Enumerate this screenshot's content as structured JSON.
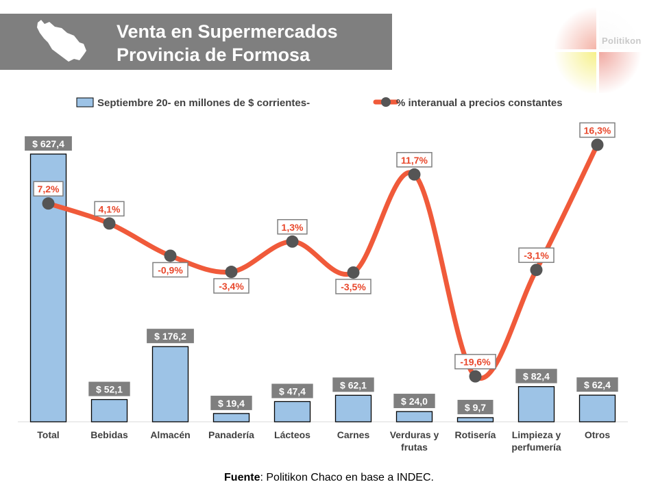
{
  "header": {
    "title_line1": "Venta en Supermercados",
    "title_line2": "Provincia de Formosa"
  },
  "logo": {
    "text": "Politikon"
  },
  "legend": {
    "bar_label": "Septiembre 20- en millones de $ corrientes-",
    "line_label": "% interanual a precios constantes"
  },
  "source": {
    "label": "Fuente",
    "text": ": Politikon Chaco en base a INDEC."
  },
  "colors": {
    "bar_fill": "#9dc3e6",
    "bar_stroke": "#000000",
    "line": "#f05a3a",
    "marker": "#555555",
    "value_label_bg": "#7f7f7f",
    "pct_label_text": "#e8472b",
    "header_bg": "#7f7f7f"
  },
  "chart_data": {
    "type": "bar",
    "categories": [
      [
        "Total"
      ],
      [
        "Bebidas"
      ],
      [
        "Almacén"
      ],
      [
        "Panadería"
      ],
      [
        "Lácteos"
      ],
      [
        "Carnes"
      ],
      [
        "Verduras y",
        "frutas"
      ],
      [
        "Rotisería"
      ],
      [
        "Limpieza y",
        "perfumería"
      ],
      [
        "Otros"
      ]
    ],
    "series": [
      {
        "name": "Septiembre 20- en millones de $ corrientes-",
        "type": "bar",
        "values": [
          627.4,
          52.1,
          176.2,
          19.4,
          47.4,
          62.1,
          24.0,
          9.7,
          82.4,
          62.4
        ],
        "labels": [
          "$ 627,4",
          "$ 52,1",
          "$ 176,2",
          "$ 19,4",
          "$ 47,4",
          "$ 62,1",
          "$ 24,0",
          "$ 9,7",
          "$ 82,4",
          "$ 62,4"
        ]
      },
      {
        "name": "% interanual a precios constantes",
        "type": "line",
        "values": [
          7.2,
          4.1,
          -0.9,
          -3.4,
          1.3,
          -3.5,
          11.7,
          -19.6,
          -3.1,
          16.3
        ],
        "labels": [
          "7,2%",
          "4,1%",
          "-0,9%",
          "-3,4%",
          "1,3%",
          "-3,5%",
          "11,7%",
          "-19,6%",
          "-3,1%",
          "16,3%"
        ],
        "label_position": [
          "above",
          "above",
          "below",
          "below",
          "above",
          "below",
          "above",
          "above",
          "above",
          "above"
        ]
      }
    ],
    "bar_ylim": [
      0,
      650
    ],
    "line_ylim": [
      -21,
      17
    ],
    "legend_position": "top",
    "grid": false
  }
}
